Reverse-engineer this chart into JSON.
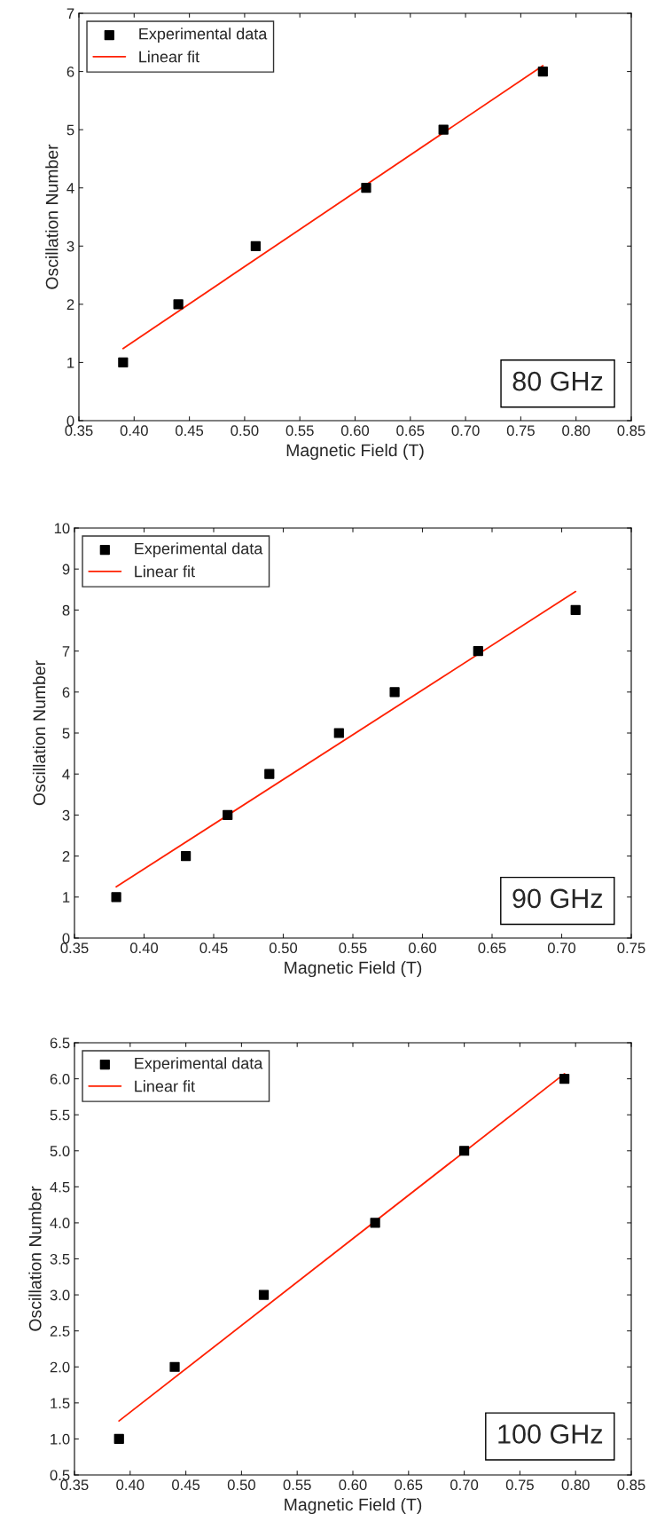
{
  "chart_data": [
    {
      "type": "scatter",
      "xlabel": "Magnetic Field (T)",
      "ylabel": "Oscillation Number",
      "annotations": [
        "80 GHz"
      ],
      "legend": "top left",
      "grid": false,
      "xlim": [
        0.35,
        0.85
      ],
      "xticks": [
        {
          "value": 0.35,
          "label": "0.35"
        },
        {
          "value": 0.4,
          "label": "0.40"
        },
        {
          "value": 0.45,
          "label": "0.45"
        },
        {
          "value": 0.5,
          "label": "0.50"
        },
        {
          "value": 0.55,
          "label": "0.55"
        },
        {
          "value": 0.6,
          "label": "0.60"
        },
        {
          "value": 0.65,
          "label": "0.65"
        },
        {
          "value": 0.7,
          "label": "0.70"
        },
        {
          "value": 0.75,
          "label": "0.75"
        },
        {
          "value": 0.8,
          "label": "0.80"
        },
        {
          "value": 0.85,
          "label": "0.85"
        }
      ],
      "ylim": [
        0,
        7
      ],
      "yticks": [
        0,
        1,
        2,
        3,
        4,
        5,
        6,
        7
      ],
      "series": [
        {
          "name": "Experimental data",
          "marker": "square",
          "color": "#000000",
          "x": [
            0.39,
            0.44,
            0.51,
            0.61,
            0.68,
            0.77
          ],
          "values": [
            1,
            2,
            3,
            4,
            5,
            6
          ]
        },
        {
          "name": "Linear fit",
          "type": "line",
          "marker": "none",
          "line_style": "solid",
          "color": "#ff2000",
          "x": [
            0.39,
            0.77
          ],
          "values": [
            1.24,
            6.1
          ]
        }
      ]
    },
    {
      "type": "scatter",
      "xlabel": "Magnetic Field (T)",
      "ylabel": "Oscillation Number",
      "annotations": [
        "90 GHz"
      ],
      "legend": "top left",
      "grid": false,
      "xlim": [
        0.35,
        0.75
      ],
      "xticks": [
        {
          "value": 0.35,
          "label": "0.35"
        },
        {
          "value": 0.4,
          "label": "0.40"
        },
        {
          "value": 0.45,
          "label": "0.45"
        },
        {
          "value": 0.5,
          "label": "0.50"
        },
        {
          "value": 0.55,
          "label": "0.55"
        },
        {
          "value": 0.6,
          "label": "0.60"
        },
        {
          "value": 0.65,
          "label": "0.65"
        },
        {
          "value": 0.7,
          "label": "0.70"
        },
        {
          "value": 0.75,
          "label": "0.75"
        }
      ],
      "ylim": [
        0,
        10
      ],
      "yticks": [
        0,
        1,
        2,
        3,
        4,
        5,
        6,
        7,
        8,
        9,
        10
      ],
      "series": [
        {
          "name": "Experimental data",
          "marker": "square",
          "color": "#000000",
          "x": [
            0.38,
            0.43,
            0.46,
            0.49,
            0.54,
            0.58,
            0.64,
            0.71
          ],
          "values": [
            1,
            2,
            3,
            4,
            5,
            6,
            7,
            8
          ]
        },
        {
          "name": "Linear fit",
          "type": "line",
          "marker": "none",
          "line_style": "solid",
          "color": "#ff2000",
          "x": [
            0.38,
            0.71
          ],
          "values": [
            1.25,
            8.45
          ]
        }
      ]
    },
    {
      "type": "scatter",
      "xlabel": "Magnetic Field (T)",
      "ylabel": "Oscillation Number",
      "annotations": [
        "100 GHz"
      ],
      "legend": "top left",
      "grid": false,
      "xlim": [
        0.35,
        0.85
      ],
      "xticks": [
        {
          "value": 0.35,
          "label": "0.35"
        },
        {
          "value": 0.4,
          "label": "0.40"
        },
        {
          "value": 0.45,
          "label": "0.45"
        },
        {
          "value": 0.5,
          "label": "0.50"
        },
        {
          "value": 0.55,
          "label": "0.55"
        },
        {
          "value": 0.6,
          "label": "0.60"
        },
        {
          "value": 0.65,
          "label": "0.65"
        },
        {
          "value": 0.7,
          "label": "0.70"
        },
        {
          "value": 0.75,
          "label": "0.75"
        },
        {
          "value": 0.8,
          "label": "0.80"
        },
        {
          "value": 0.85,
          "label": "0.85"
        }
      ],
      "ylim": [
        0.5,
        6.5
      ],
      "yticks": [
        0.5,
        {
          "value": 1,
          "label": "1.0"
        },
        1.5,
        {
          "value": 2,
          "label": "2.0"
        },
        2.5,
        {
          "value": 3,
          "label": "3.0"
        },
        3.5,
        {
          "value": 4,
          "label": "4.0"
        },
        4.5,
        {
          "value": 5,
          "label": "5.0"
        },
        5.5,
        {
          "value": 6,
          "label": "6.0"
        },
        6.5
      ],
      "series": [
        {
          "name": "Experimental data",
          "marker": "square",
          "color": "#000000",
          "x": [
            0.39,
            0.44,
            0.52,
            0.62,
            0.7,
            0.79
          ],
          "values": [
            1,
            2,
            3,
            4,
            5,
            6
          ]
        },
        {
          "name": "Linear fit",
          "type": "line",
          "marker": "none",
          "line_style": "solid",
          "color": "#ff2000",
          "x": [
            0.39,
            0.79
          ],
          "values": [
            1.25,
            6.07
          ]
        }
      ]
    }
  ]
}
